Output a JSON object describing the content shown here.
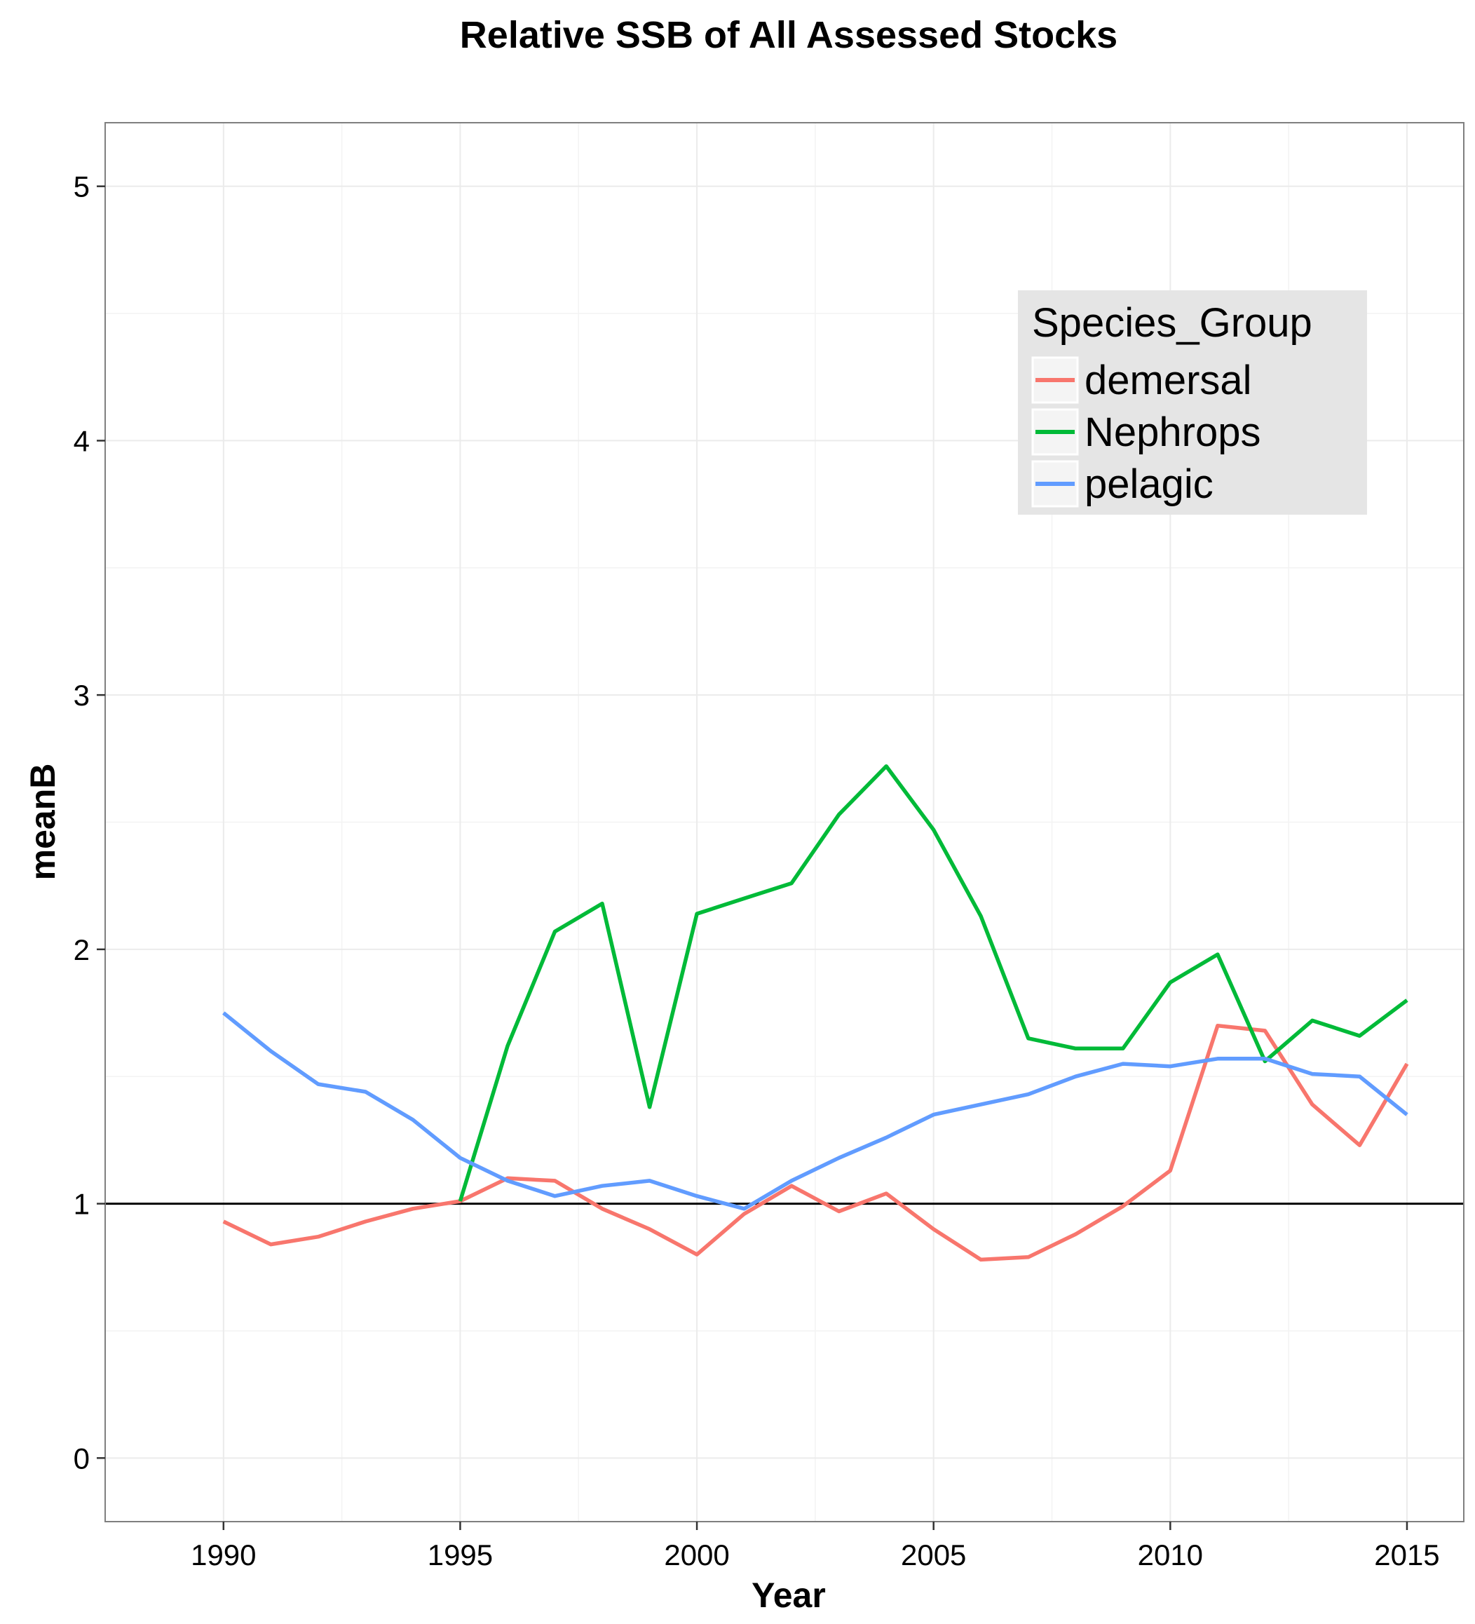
{
  "chart_data": {
    "type": "line",
    "title": "Relative SSB of All Assessed Stocks",
    "xlabel": "Year",
    "ylabel": "meanB",
    "xlim": [
      1987.5,
      2016.2
    ],
    "ylim": [
      -0.25,
      5.25
    ],
    "x_ticks": [
      "1990",
      "1995",
      "2000",
      "2005",
      "2010",
      "2015"
    ],
    "y_ticks": [
      "0",
      "1",
      "2",
      "3",
      "4",
      "5"
    ],
    "grid": true,
    "reference_line": 1,
    "legend": {
      "title": "Species_Group",
      "placement": "top-right"
    },
    "x": [
      1990,
      1991,
      1992,
      1993,
      1994,
      1995,
      1996,
      1997,
      1998,
      1999,
      2000,
      2001,
      2002,
      2003,
      2004,
      2005,
      2006,
      2007,
      2008,
      2009,
      2010,
      2011,
      2012,
      2013,
      2014,
      2015
    ],
    "series": [
      {
        "name": "demersal",
        "color": "#F8766D",
        "x": [
          1990,
          1991,
          1992,
          1993,
          1994,
          1995,
          1996,
          1997,
          1998,
          1999,
          2000,
          2001,
          2002,
          2003,
          2004,
          2005,
          2006,
          2007,
          2008,
          2009,
          2010,
          2011,
          2012,
          2013,
          2014,
          2015
        ],
        "values": [
          0.93,
          0.84,
          0.87,
          0.93,
          0.98,
          1.01,
          1.1,
          1.09,
          0.98,
          0.9,
          0.8,
          0.96,
          1.07,
          0.97,
          1.04,
          0.9,
          0.78,
          0.79,
          0.88,
          0.99,
          1.13,
          1.7,
          1.68,
          1.39,
          1.23,
          1.55
        ]
      },
      {
        "name": "Nephrops",
        "color": "#00BA38",
        "x": [
          1995,
          1996,
          1997,
          1998,
          1999,
          2000,
          2001,
          2002,
          2003,
          2004,
          2005,
          2006,
          2007,
          2008,
          2009,
          2010,
          2011,
          2012,
          2013,
          2014,
          2015
        ],
        "values": [
          1.01,
          1.62,
          2.07,
          2.18,
          1.38,
          2.14,
          2.2,
          2.26,
          2.53,
          2.72,
          2.47,
          2.13,
          1.65,
          1.61,
          1.61,
          1.87,
          1.98,
          1.56,
          1.72,
          1.66,
          1.8
        ]
      },
      {
        "name": "pelagic",
        "color": "#619CFF",
        "x": [
          1990,
          1991,
          1992,
          1993,
          1994,
          1995,
          1996,
          1997,
          1998,
          1999,
          2000,
          2001,
          2002,
          2003,
          2004,
          2005,
          2006,
          2007,
          2008,
          2009,
          2010,
          2011,
          2012,
          2013,
          2014,
          2015
        ],
        "values": [
          1.75,
          1.6,
          1.47,
          1.44,
          1.33,
          1.18,
          1.09,
          1.03,
          1.07,
          1.09,
          1.03,
          0.98,
          1.09,
          1.18,
          1.26,
          1.35,
          1.39,
          1.43,
          1.5,
          1.55,
          1.54,
          1.57,
          1.57,
          1.51,
          1.5,
          1.35
        ]
      }
    ]
  }
}
